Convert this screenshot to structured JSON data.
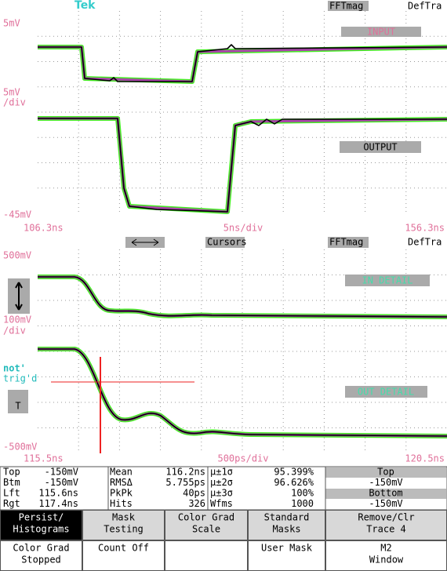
{
  "header": {
    "logo": "Tek",
    "fft": "FFTmag",
    "deftra": "DefTra"
  },
  "top_panel": {
    "scale_top": "5mV",
    "trace1_label": "INPUT",
    "scale_mid": "5mV",
    "scale_mid_unit": "/div",
    "trace2_label": "OUTPUT",
    "scale_bottom": "-45mV",
    "time_left": "106.3ns",
    "time_div": "5ns/div",
    "time_right": "156.3ns"
  },
  "mid_bar": {
    "cursors": "Cursors",
    "fft": "FFTmag",
    "deftra": "DefTra"
  },
  "bottom_panel": {
    "scale_top": "500mV",
    "trace1_label": "IN DETAIL",
    "scale_mid": "100mV",
    "scale_mid_unit": "/div",
    "trig_1": "not'",
    "trig_2": "trig'd",
    "trig_icon": "T",
    "trace2_label": "OUT DETAIL",
    "scale_bottom": "-500mV",
    "time_left": "115.5ns",
    "time_div": "500ps/div",
    "time_right": "120.5ns"
  },
  "measurements": {
    "rows": [
      [
        "Top",
        "-150mV",
        "Mean",
        "116.2ns",
        "µ±1σ",
        "95.399%",
        "Top"
      ],
      [
        "Btm",
        "-150mV",
        "RMSΔ",
        "5.755ps",
        "µ±2σ",
        "96.626%",
        "-150mV"
      ],
      [
        "Lft",
        "115.6ns",
        "PkPk",
        "40ps",
        "µ±3σ",
        "100%",
        "Bottom"
      ],
      [
        "Rgt",
        "117.4ns",
        "Hits",
        "326",
        "Wfms",
        "1000",
        "-150mV"
      ]
    ]
  },
  "menu": {
    "top": [
      [
        "Persist/",
        "Histograms"
      ],
      [
        "Mask",
        "Testing"
      ],
      [
        "Color Grad",
        "Scale"
      ],
      [
        "Standard",
        "Masks"
      ],
      [
        "Remove/Clr",
        "Trace 4"
      ]
    ],
    "bottom": [
      [
        "Color Grad",
        "Stopped"
      ],
      [
        "Count Off"
      ],
      [],
      [
        "User Mask"
      ],
      [
        "M2",
        "Window"
      ]
    ]
  }
}
